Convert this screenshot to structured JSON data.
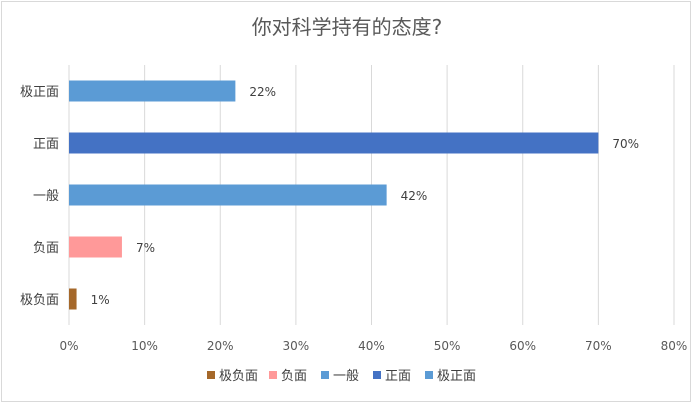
{
  "chart_data": {
    "type": "bar",
    "orientation": "horizontal",
    "title": "你对科学持有的态度?",
    "categories": [
      "极正面",
      "正面",
      "一般",
      "负面",
      "极负面"
    ],
    "values": [
      22,
      70,
      42,
      7,
      1
    ],
    "value_labels": [
      "22%",
      "70%",
      "42%",
      "7%",
      "1%"
    ],
    "colors": [
      "#5b9bd5",
      "#4472c4",
      "#5b9bd5",
      "#ff9999",
      "#a5682a"
    ],
    "xlim": [
      0,
      80
    ],
    "xticks": [
      "0%",
      "10%",
      "20%",
      "30%",
      "40%",
      "50%",
      "60%",
      "70%",
      "80%"
    ],
    "grid": true,
    "legend_position": "bottom",
    "legend": [
      {
        "label": "极负面",
        "color": "#a5682a"
      },
      {
        "label": "负面",
        "color": "#ff9999"
      },
      {
        "label": "一般",
        "color": "#5b9bd5"
      },
      {
        "label": "正面",
        "color": "#4472c4"
      },
      {
        "label": "极正面",
        "color": "#5b9bd5"
      }
    ]
  }
}
